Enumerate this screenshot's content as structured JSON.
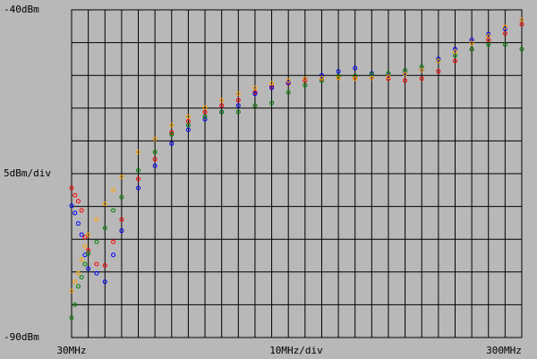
{
  "chart_data": {
    "type": "scatter",
    "xlim": [
      30,
      300
    ],
    "ylim": [
      -90,
      -40
    ],
    "xticks": [
      {
        "value": 30,
        "label": "30MHz"
      },
      {
        "value": 300,
        "label": "300MHz"
      }
    ],
    "yticks": [
      {
        "value": -90,
        "label": "-90dBm"
      },
      {
        "value": -40,
        "label": "-40dBm"
      }
    ],
    "xdiv": {
      "value": 10,
      "label": "10MHz/div"
    },
    "ydiv": {
      "value": 5,
      "label": "5dBm/div"
    },
    "grid": true,
    "x": [
      30,
      32,
      34,
      36,
      38,
      40,
      45,
      50,
      55,
      60,
      70,
      80,
      90,
      100,
      110,
      120,
      130,
      140,
      150,
      160,
      170,
      180,
      190,
      200,
      210,
      220,
      230,
      240,
      250,
      260,
      270,
      280,
      290,
      300
    ],
    "series": [
      {
        "color": "#ff0000",
        "values": [
          -67.2,
          -68.3,
          -69.2,
          -70.6,
          -74.7,
          -76.7,
          -78.8,
          -79,
          -75.4,
          -72,
          -65.8,
          -62.8,
          -58.7,
          -57,
          -55.6,
          -54.6,
          -53.8,
          -52.6,
          -51.7,
          -51.2,
          -50.8,
          -50.5,
          -50.4,
          -50.4,
          -50.4,
          -50.5,
          -50.8,
          -50.5,
          -49.4,
          -47.8,
          -46,
          -44.6,
          -43.6,
          -42.2
        ]
      },
      {
        "color": "#0000ff",
        "values": [
          -69.9,
          -71,
          -72.6,
          -74.3,
          -77.4,
          -79.5,
          -80.2,
          -81.5,
          -77.4,
          -73.7,
          -67.2,
          -63.8,
          -60.4,
          -58.3,
          -56.7,
          -55.6,
          -54.6,
          -52.8,
          -51.9,
          -51.1,
          -50.5,
          -50,
          -49.4,
          -48.9,
          -49.7,
          -50.1,
          -49.7,
          -49.2,
          -47.5,
          -46,
          -44.6,
          -43.7,
          -42.9,
          -41.5
        ]
      },
      {
        "color": "#008000",
        "values": [
          -87,
          -85,
          -82.2,
          -80.8,
          -78.8,
          -77.2,
          -75.4,
          -73.3,
          -70.6,
          -68.6,
          -64.5,
          -61.7,
          -59,
          -57.6,
          -56.3,
          -55.6,
          -55.6,
          -54.6,
          -54.2,
          -52.6,
          -51.5,
          -50.8,
          -50.1,
          -50.1,
          -49.8,
          -49.7,
          -49.2,
          -48.7,
          -47.8,
          -47,
          -46,
          -45.3,
          -45.3,
          -46
        ]
      },
      {
        "color": "#ffa500",
        "values": [
          -82.9,
          -81.5,
          -80.2,
          -78.1,
          -76.1,
          -74.3,
          -72,
          -69.6,
          -67.5,
          -65.5,
          -61.7,
          -59.7,
          -57.6,
          -56.3,
          -54.9,
          -53.8,
          -52.8,
          -51.9,
          -51.2,
          -50.8,
          -50.5,
          -50.4,
          -50.4,
          -50.5,
          -50.4,
          -50.2,
          -49.8,
          -49.2,
          -47.8,
          -46.4,
          -45.1,
          -44,
          -42.6,
          -41.5
        ]
      }
    ]
  }
}
